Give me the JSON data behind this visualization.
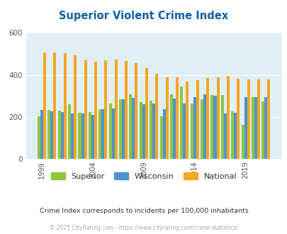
{
  "title": "Superior Violent Crime Index",
  "years": [
    1999,
    2000,
    2001,
    2002,
    2003,
    2004,
    2005,
    2006,
    2007,
    2008,
    2009,
    2010,
    2011,
    2012,
    2013,
    2014,
    2015,
    2016,
    2017,
    2018,
    2019,
    2020,
    2021
  ],
  "superior": [
    202,
    232,
    230,
    262,
    220,
    225,
    237,
    263,
    283,
    308,
    270,
    278,
    203,
    308,
    345,
    263,
    283,
    305,
    303,
    227,
    163,
    293,
    275
  ],
  "wisconsin": [
    232,
    228,
    222,
    218,
    218,
    209,
    237,
    240,
    285,
    290,
    260,
    265,
    237,
    286,
    264,
    293,
    307,
    302,
    218,
    220,
    294,
    293,
    293
  ],
  "national": [
    506,
    506,
    504,
    494,
    471,
    463,
    469,
    474,
    466,
    457,
    432,
    405,
    390,
    387,
    368,
    374,
    384,
    387,
    396,
    383,
    379,
    379,
    379
  ],
  "superior_color": "#8dc63f",
  "wisconsin_color": "#4f93ce",
  "national_color": "#f5a623",
  "bg_color": "#e0eef5",
  "ylim": [
    0,
    600
  ],
  "yticks": [
    0,
    200,
    400,
    600
  ],
  "subtitle": "Crime Index corresponds to incidents per 100,000 inhabitants",
  "footer": "© 2025 CityRating.com - https://www.cityrating.com/crime-statistics/",
  "title_color": "#1060a8",
  "subtitle_color": "#333333",
  "footer_color": "#aaaaaa",
  "label_years": [
    1999,
    2004,
    2009,
    2014,
    2019
  ]
}
